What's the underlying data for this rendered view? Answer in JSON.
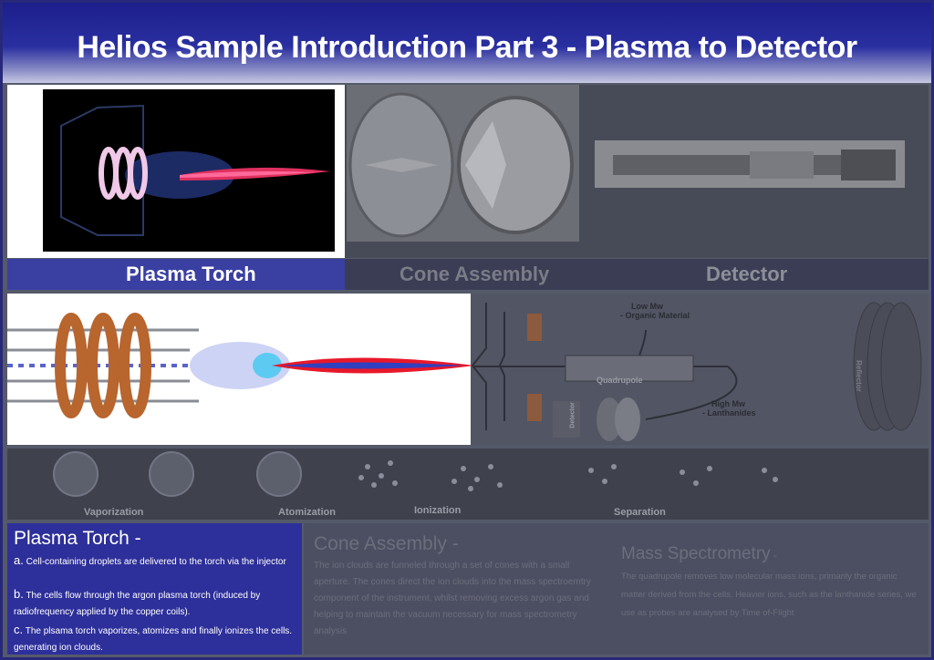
{
  "title": "Helios Sample Introduction Part 3 -  Plasma to Detector",
  "labels": {
    "plasma_torch": "Plasma Torch",
    "cone_assembly": "Cone Assembly",
    "detector": "Detector"
  },
  "diagram": {
    "low_mw": "Low Mw",
    "organic": "- Organic Material",
    "quadrupole": "Quadrupole",
    "high_mw": "High Mw",
    "lanthanides": "- Lanthanides",
    "detector": "Detector",
    "reflector": "Reflector"
  },
  "process_labels": {
    "vaporization": "Vaporization",
    "atomization": "Atomization",
    "ionization": "Ionization",
    "separation": "Separation"
  },
  "panels": {
    "torch": {
      "heading": "Plasma Torch -",
      "a_marker": "a.",
      "a_text": " Cell-containing droplets are delivered to the torch via the injector",
      "b_marker": "b.",
      "b_text": " The cells flow through the argon plasma torch (induced by radiofrequency applied by the copper coils).",
      "c_marker": "c.",
      "c_text": "  The plsama torch vaporizes, atomizes and finally ionizes the cells. generating ion clouds."
    },
    "cone": {
      "heading": "Cone Assembly -",
      "text": "The ion clouds are funneled through a set of cones with a small aperture. The cones direct the ion clouds into the mass spectroemtry component of the instrument, whilst removing excess argon gas and helping to maintain the vacuum necessary for mass spectrometry analysis"
    },
    "mass": {
      "heading": "Mass Spectrometry",
      "heading_suffix": " -",
      "text": "The quadrupole removes low molecular mass ions, primarily the organic matter derived from the cells. Heavier  ions, such as the lanthanide series, we use as probes are analysed by Time of-Flight"
    }
  },
  "colors": {
    "title_bar": "#1c1f8c",
    "torch_panel": "#2d2f9a",
    "plasma_red": "#e8182a",
    "copper": "#b8652e"
  }
}
